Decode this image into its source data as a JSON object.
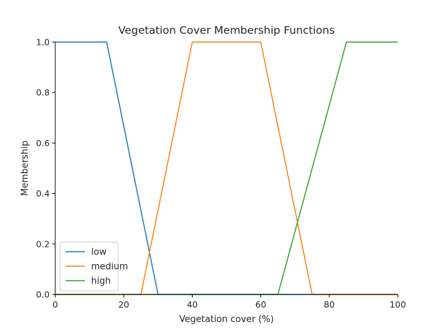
{
  "chart_data": {
    "type": "line",
    "title": "Vegetation Cover Membership Functions",
    "xlabel": "Vegetation cover (%)",
    "ylabel": "Membership",
    "xlim": [
      0,
      100
    ],
    "ylim": [
      0,
      1
    ],
    "xticks": [
      0,
      20,
      40,
      60,
      80,
      100
    ],
    "yticks": [
      0.0,
      0.2,
      0.4,
      0.6,
      0.8,
      1.0
    ],
    "xtick_labels": [
      "0",
      "20",
      "40",
      "60",
      "80",
      "100"
    ],
    "ytick_labels": [
      "0.0",
      "0.2",
      "0.4",
      "0.6",
      "0.8",
      "1.0"
    ],
    "grid": false,
    "legend_position": "lower-left",
    "series": [
      {
        "name": "low",
        "color": "#1f77b4",
        "x": [
          0,
          15,
          30,
          100
        ],
        "y": [
          1,
          1,
          0,
          0
        ]
      },
      {
        "name": "medium",
        "color": "#ff7f0e",
        "x": [
          0,
          25,
          40,
          60,
          75,
          100
        ],
        "y": [
          0,
          0,
          1,
          1,
          0,
          0
        ]
      },
      {
        "name": "high",
        "color": "#2ca02c",
        "x": [
          0,
          65,
          85,
          100
        ],
        "y": [
          0,
          0,
          1,
          1
        ]
      }
    ]
  }
}
